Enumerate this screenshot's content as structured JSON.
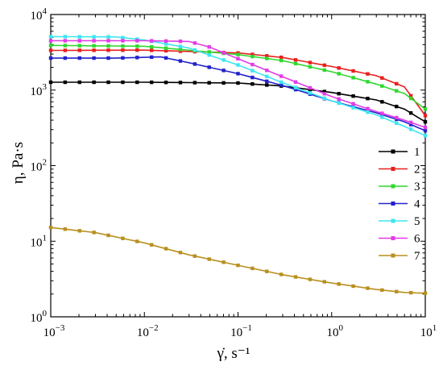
{
  "chart_data": {
    "type": "line",
    "xscale": "log",
    "yscale": "log",
    "xlim": [
      0.001,
      10
    ],
    "ylim": [
      1,
      10000
    ],
    "xlabel": "γ̇, s⁻¹",
    "ylabel": "η, Pa·s",
    "x_ticks": [
      {
        "value": 0.001,
        "base": "10",
        "exp": "−3"
      },
      {
        "value": 0.01,
        "base": "10",
        "exp": "−2"
      },
      {
        "value": 0.1,
        "base": "10",
        "exp": "−1"
      },
      {
        "value": 1,
        "base": "10",
        "exp": "0"
      },
      {
        "value": 10,
        "base": "10",
        "exp": "1"
      }
    ],
    "y_ticks": [
      {
        "value": 1,
        "base": "10",
        "exp": "0"
      },
      {
        "value": 10,
        "base": "10",
        "exp": "1"
      },
      {
        "value": 100,
        "base": "10",
        "exp": "2"
      },
      {
        "value": 1000,
        "base": "10",
        "exp": "3"
      },
      {
        "value": 10000,
        "base": "10",
        "exp": "4"
      }
    ],
    "legend_position": "right",
    "grid": false,
    "series": [
      {
        "name": "1",
        "color": "#000000",
        "points": [
          [
            0.001,
            1270
          ],
          [
            0.01,
            1270
          ],
          [
            0.1,
            1240
          ],
          [
            0.3,
            1130
          ],
          [
            1,
            930
          ],
          [
            3,
            740
          ],
          [
            6,
            560
          ],
          [
            10,
            380
          ]
        ]
      },
      {
        "name": "2",
        "color": "#e8201e",
        "points": [
          [
            0.001,
            3350
          ],
          [
            0.01,
            3380
          ],
          [
            0.1,
            3100
          ],
          [
            0.3,
            2700
          ],
          [
            1,
            2050
          ],
          [
            3,
            1550
          ],
          [
            6,
            1100
          ],
          [
            10,
            460
          ]
        ]
      },
      {
        "name": "3",
        "color": "#2fd82f",
        "points": [
          [
            0.001,
            3900
          ],
          [
            0.01,
            3800
          ],
          [
            0.1,
            2950
          ],
          [
            0.3,
            2450
          ],
          [
            1,
            1750
          ],
          [
            3,
            1200
          ],
          [
            6,
            900
          ],
          [
            10,
            560
          ]
        ]
      },
      {
        "name": "4",
        "color": "#2222cc",
        "points": [
          [
            0.001,
            2650
          ],
          [
            0.005,
            2650
          ],
          [
            0.015,
            2750
          ],
          [
            0.03,
            2300
          ],
          [
            0.1,
            1650
          ],
          [
            0.3,
            1150
          ],
          [
            1,
            720
          ],
          [
            3,
            500
          ],
          [
            6,
            380
          ],
          [
            10,
            290
          ]
        ]
      },
      {
        "name": "5",
        "color": "#3ee6f0",
        "points": [
          [
            0.001,
            5100
          ],
          [
            0.005,
            5050
          ],
          [
            0.01,
            4600
          ],
          [
            0.03,
            3600
          ],
          [
            0.1,
            2150
          ],
          [
            0.3,
            1250
          ],
          [
            1,
            720
          ],
          [
            3,
            470
          ],
          [
            6,
            330
          ],
          [
            10,
            250
          ]
        ]
      },
      {
        "name": "6",
        "color": "#e23ce6",
        "points": [
          [
            0.001,
            4500
          ],
          [
            0.01,
            4500
          ],
          [
            0.03,
            4400
          ],
          [
            0.05,
            3700
          ],
          [
            0.1,
            2600
          ],
          [
            0.3,
            1500
          ],
          [
            1,
            820
          ],
          [
            3,
            520
          ],
          [
            6,
            400
          ],
          [
            10,
            320
          ]
        ]
      },
      {
        "name": "7",
        "color": "#b8901e",
        "points": [
          [
            0.001,
            15.2
          ],
          [
            0.003,
            13
          ],
          [
            0.01,
            9.5
          ],
          [
            0.03,
            6.6
          ],
          [
            0.1,
            4.8
          ],
          [
            0.3,
            3.6
          ],
          [
            1,
            2.8
          ],
          [
            3,
            2.3
          ],
          [
            6,
            2.1
          ],
          [
            10,
            2.05
          ]
        ]
      }
    ]
  }
}
